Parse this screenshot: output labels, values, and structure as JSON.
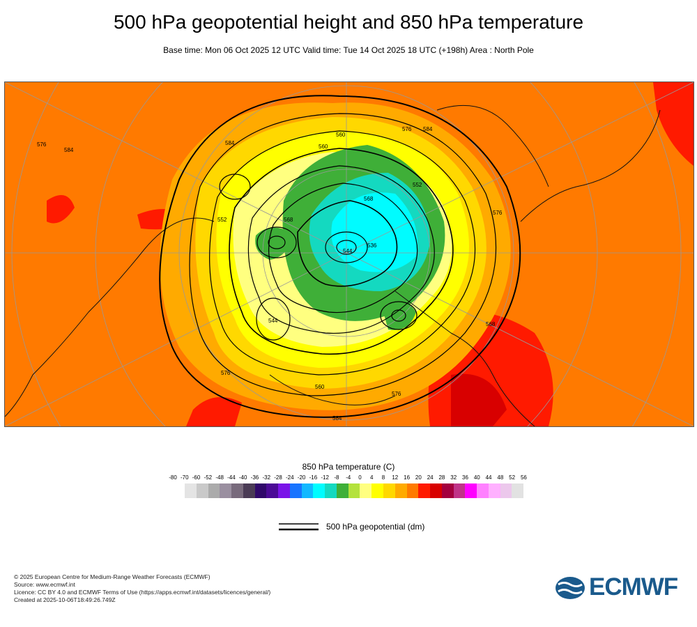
{
  "title": "500 hPa geopotential height and 850 hPa temperature",
  "subtitle": "Base time: Mon 06 Oct 2025 12 UTC Valid time: Tue 14 Oct 2025 18 UTC (+198h) Area : North Pole",
  "colorbar": {
    "title": "850 hPa temperature (C)",
    "tick_labels": [
      "-80",
      "-70",
      "-60",
      "-52",
      "-48",
      "-44",
      "-40",
      "-36",
      "-32",
      "-28",
      "-24",
      "-20",
      "-16",
      "-12",
      "-8",
      "-4",
      "0",
      "4",
      "8",
      "12",
      "16",
      "20",
      "24",
      "28",
      "32",
      "36",
      "40",
      "44",
      "48",
      "52",
      "56"
    ],
    "colors": [
      "#e4e4e4",
      "#c9c9c9",
      "#ababab",
      "#9a8fa0",
      "#786a7c",
      "#4a3b55",
      "#30086a",
      "#4b0a96",
      "#7a14e8",
      "#1874ff",
      "#12b8ff",
      "#00fcff",
      "#14d9c0",
      "#3faf38",
      "#b4e23c",
      "#ffff80",
      "#ffff00",
      "#ffd800",
      "#ffaa00",
      "#ff7a00",
      "#ff1a00",
      "#d80000",
      "#a4003e",
      "#c03388",
      "#ff00ff",
      "#ff80ff",
      "#ffb0ff",
      "#ecc8ec",
      "#e2e2e2"
    ]
  },
  "contour_legend": {
    "label": "500 hPa geopotential (dm)"
  },
  "map": {
    "contour_labels": [
      "584",
      "576",
      "560",
      "584",
      "576",
      "560",
      "552",
      "544",
      "576",
      "560",
      "536",
      "544",
      "568",
      "568",
      "552",
      "584",
      "576",
      "584",
      "568",
      "576"
    ]
  },
  "credits": [
    "© 2025 European Centre for Medium-Range Weather Forecasts (ECMWF)",
    "Source: www.ecmwf.int",
    "Licence: CC BY 4.0 and ECMWF Terms of Use (https://apps.ecmwf.int/datasets/licences/general/)",
    "Created at 2025-10-06T18:49:26.749Z"
  ],
  "logo": {
    "text": "ECMWF"
  }
}
